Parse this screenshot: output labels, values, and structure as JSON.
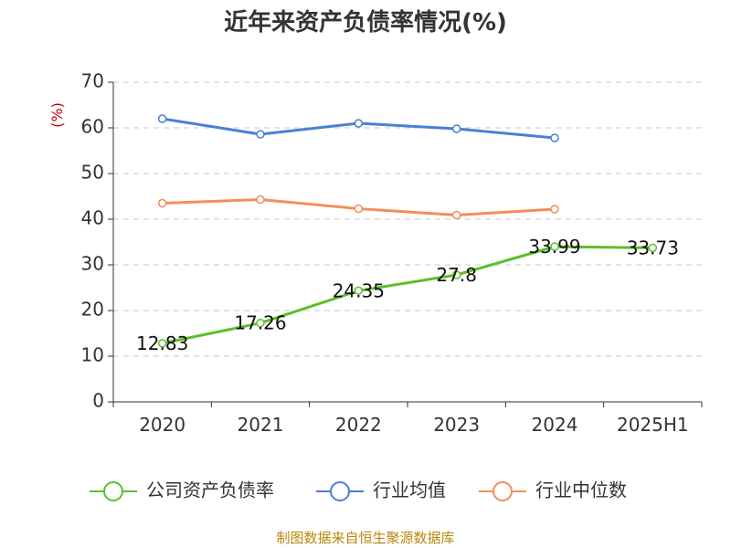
{
  "chart_data": {
    "type": "line",
    "title": "近年来资产负债率情况(%)",
    "ylabel": "(%)",
    "categories": [
      "2020",
      "2021",
      "2022",
      "2023",
      "2024",
      "2025H1"
    ],
    "yticks": [
      "0",
      "10",
      "20",
      "30",
      "40",
      "50",
      "60",
      "70"
    ],
    "ylim": [
      0,
      70
    ],
    "grid": true,
    "legend_position": "bottom",
    "series": [
      {
        "name": "公司资产负债率",
        "color": "#5cbf2a",
        "values": [
          12.83,
          17.26,
          24.35,
          27.8,
          33.99,
          33.73
        ],
        "labels": [
          "12.83",
          "17.26",
          "24.35",
          "27.8",
          "33.99",
          "33.73"
        ]
      },
      {
        "name": "行业均值",
        "color": "#4a7fd6",
        "values": [
          62.0,
          58.6,
          61.0,
          59.8,
          57.8,
          null
        ]
      },
      {
        "name": "行业中位数",
        "color": "#f28e5c",
        "values": [
          43.5,
          44.3,
          42.3,
          40.9,
          42.2,
          null
        ]
      }
    ]
  },
  "footer": {
    "source": "制图数据来自恒生聚源数据库"
  }
}
